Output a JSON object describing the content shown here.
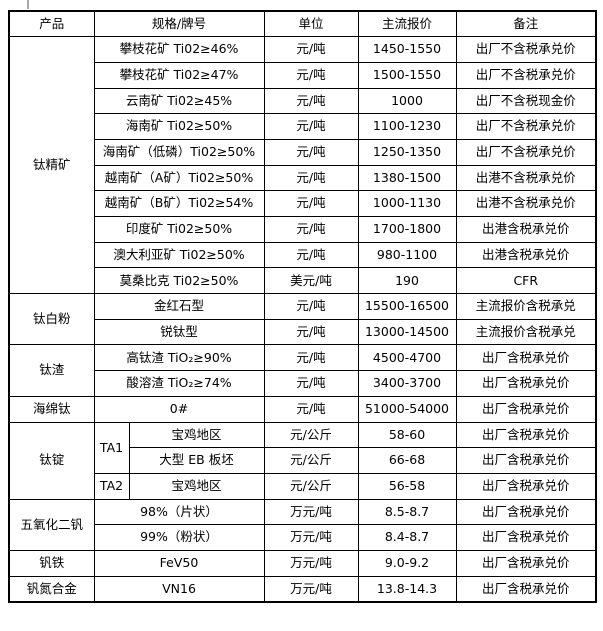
{
  "header": {
    "columns": [
      "产品",
      "规格/牌号",
      "单位",
      "主流报价",
      "备注"
    ]
  },
  "groups": [
    {
      "product": "钛精矿",
      "rows": [
        {
          "spec": "攀枝花矿 Ti02≥46%",
          "unit": "元/吨",
          "price": "1450-1550",
          "note": "出厂不含税承兑价"
        },
        {
          "spec": "攀枝花矿 Ti02≥47%",
          "unit": "元/吨",
          "price": "1500-1550",
          "note": "出厂不含税承兑价"
        },
        {
          "spec": "云南矿 Ti02≥45%",
          "unit": "元/吨",
          "price": "1000",
          "note": "出厂不含税现金价"
        },
        {
          "spec": "海南矿 Ti02≥50%",
          "unit": "元/吨",
          "price": "1100-1230",
          "note": "出厂不含税承兑价"
        },
        {
          "spec": "海南矿（低磷）Ti02≥50%",
          "unit": "元/吨",
          "price": "1250-1350",
          "note": "出厂不含税承兑价"
        },
        {
          "spec": "越南矿（A矿）Ti02≥50%",
          "unit": "元/吨",
          "price": "1380-1500",
          "note": "出港不含税承兑价"
        },
        {
          "spec": "越南矿（B矿）Ti02≥54%",
          "unit": "元/吨",
          "price": "1000-1130",
          "note": "出港不含税承兑价"
        },
        {
          "spec": "印度矿 Ti02≥50%",
          "unit": "元/吨",
          "price": "1700-1800",
          "note": "出港含税承兑价"
        },
        {
          "spec": "澳大利亚矿 Ti02≥50%",
          "unit": "元/吨",
          "price": "980-1100",
          "note": "出港含税承兑价"
        },
        {
          "spec": "莫桑比克 Ti02≥50%",
          "unit": "美元/吨",
          "price": "190",
          "note": "CFR"
        }
      ]
    },
    {
      "product": "钛白粉",
      "rows": [
        {
          "spec": "金红石型",
          "unit": "元/吨",
          "price": "15500-16500",
          "note": "主流报价含税承兑"
        },
        {
          "spec": "锐钛型",
          "unit": "元/吨",
          "price": "13000-14500",
          "note": "主流报价含税承兑"
        }
      ]
    },
    {
      "product": "钛渣",
      "rows": [
        {
          "spec": "高钛渣 TiO₂≥90%",
          "unit": "元/吨",
          "price": "4500-4700",
          "note": "出厂含税承兑价"
        },
        {
          "spec": "酸溶渣 TiO₂≥74%",
          "unit": "元/吨",
          "price": "3400-3700",
          "note": "出厂含税承兑价"
        }
      ]
    },
    {
      "product": "海绵钛",
      "rows": [
        {
          "spec": "0#",
          "unit": "元/吨",
          "price": "51000-54000",
          "note": "出厂含税承兑价"
        }
      ]
    },
    {
      "product": "钛锭",
      "rows": [
        {
          "grade": "TA1",
          "grade_rowspan": 2,
          "spec": "宝鸡地区",
          "unit": "元/公斤",
          "price": "58-60",
          "note": "出厂含税承兑价"
        },
        {
          "spec": "大型 EB 板坯",
          "unit": "元/公斤",
          "price": "66-68",
          "note": "出厂含税承兑价"
        },
        {
          "grade": "TA2",
          "grade_rowspan": 1,
          "spec": "宝鸡地区",
          "unit": "元/公斤",
          "price": "56-58",
          "note": "出厂含税承兑价"
        }
      ]
    },
    {
      "product": "五氧化二钒",
      "rows": [
        {
          "spec": "98%（片状）",
          "unit": "万元/吨",
          "price": "8.5-8.7",
          "note": "出厂含税承兑价"
        },
        {
          "spec": "99%（粉状）",
          "unit": "万元/吨",
          "price": "8.4-8.7",
          "note": "出厂含税承兑价"
        }
      ]
    },
    {
      "product": "钒铁",
      "rows": [
        {
          "spec": "FeV50",
          "unit": "万元/吨",
          "price": "9.0-9.2",
          "note": "出厂含税承兑价"
        }
      ]
    },
    {
      "product": "钒氮合金",
      "rows": [
        {
          "spec": "VN16",
          "unit": "万元/吨",
          "price": "13.8-14.3",
          "note": "出厂含税承兑价"
        }
      ]
    }
  ]
}
